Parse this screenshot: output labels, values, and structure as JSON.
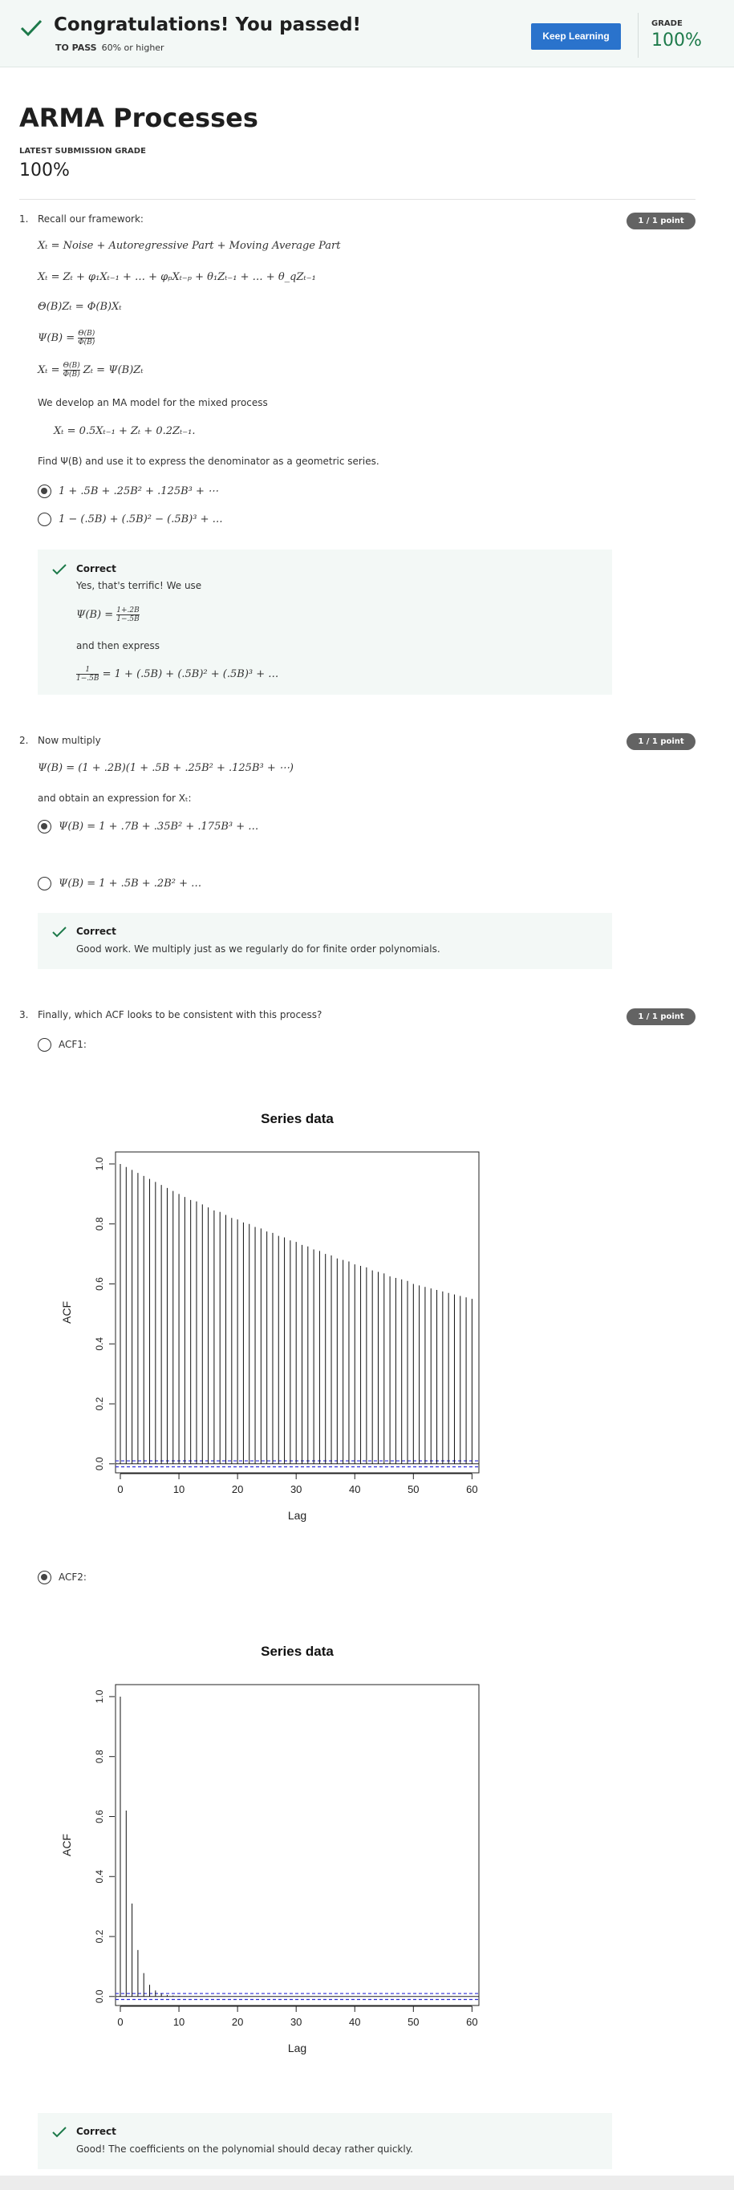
{
  "banner": {
    "title": "Congratulations! You passed!",
    "to_pass_label": "TO PASS",
    "to_pass_value": "60% or higher",
    "keep_learning_label": "Keep Learning",
    "grade_label": "GRADE",
    "grade_value": "100%",
    "accent_color": "#2a73cc",
    "success_color": "#1d7a4a",
    "icon": "check-icon"
  },
  "page": {
    "title": "ARMA Processes",
    "latest_label": "LATEST SUBMISSION GRADE",
    "latest_value": "100%"
  },
  "q1": {
    "number": "1.",
    "text": "Recall our framework:",
    "points": "1 / 1 point",
    "eq1": "Xₜ = Noise + Autoregressive Part + Moving Average Part",
    "eq2": "Xₜ = Zₜ + φ₁Xₜ₋₁ + … + φₚXₜ₋ₚ + θ₁Zₜ₋₁ + … + θ_qZₜ₋₁",
    "eq3": "Θ(B)Zₜ = Φ(B)Xₜ",
    "eq4_lhs": "Ψ(B) =",
    "eq4_num": "Θ(B)",
    "eq4_den": "Φ(B)",
    "eq5_lhs": "Xₜ =",
    "eq5_num": "Θ(B)",
    "eq5_den": "Φ(B)",
    "eq5_rhs": "Zₜ = Ψ(B)Zₜ",
    "dev_text": "We develop an MA model for the mixed process",
    "model": "Xₜ = 0.5Xₜ₋₁ + Zₜ + 0.2Zₜ₋₁.",
    "find_text": "Find Ψ(B) and use it to express the denominator as a geometric series.",
    "options": [
      {
        "text": "1 + .5B + .25B² + .125B³ + ⋯",
        "selected": true
      },
      {
        "text": "1 − (.5B) + (.5B)² − (.5B)³ + …",
        "selected": false
      }
    ],
    "feedback": {
      "title": "Correct",
      "line1": "Yes, that's terrific! We use",
      "psi_lhs": "Ψ(B) =",
      "psi_num": "1+.2B",
      "psi_den": "1−.5B",
      "line2": "and then express",
      "geo_num": "1",
      "geo_den": "1−.5B",
      "geo_rhs": "= 1 + (.5B) + (.5B)² + (.5B)³ + …"
    }
  },
  "q2": {
    "number": "2.",
    "text": "Now multiply",
    "points": "1 / 1 point",
    "eq": "Ψ(B) = (1 + .2B)(1 + .5B + .25B² + .125B³ + ⋯)",
    "obtain": "and obtain an expression for Xₜ:",
    "options": [
      {
        "text": "Ψ(B) = 1 + .7B + .35B² + .175B³ + …",
        "selected": true
      },
      {
        "text": "Ψ(B) = 1 + .5B + .2B² + …",
        "selected": false
      }
    ],
    "feedback": {
      "title": "Correct",
      "line1": "Good work. We multiply just as we regularly do for finite order polynomials."
    }
  },
  "q3": {
    "number": "3.",
    "text": "Finally, which ACF looks to be consistent with this process?",
    "points": "1 / 1 point",
    "options": [
      {
        "text": "ACF1:",
        "selected": false
      },
      {
        "text": "ACF2:",
        "selected": true
      }
    ],
    "feedback": {
      "title": "Correct",
      "line1": "Good! The coefficients on the polynomial should decay rather quickly."
    }
  },
  "chart_data": [
    {
      "type": "bar",
      "title": "Series  data",
      "xlabel": "Lag",
      "ylabel": "ACF",
      "xlim": [
        0,
        62
      ],
      "ylim": [
        -0.03,
        1.04
      ],
      "xticks": [
        "0",
        "10",
        "20",
        "30",
        "40",
        "50",
        "60"
      ],
      "yticks": [
        "0.0",
        "0.2",
        "0.4",
        "0.6",
        "0.8",
        "1.0"
      ],
      "confidence_band": 0.01,
      "lags": [
        0,
        1,
        2,
        3,
        4,
        5,
        6,
        7,
        8,
        9,
        10,
        11,
        12,
        13,
        14,
        15,
        16,
        17,
        18,
        19,
        20,
        21,
        22,
        23,
        24,
        25,
        26,
        27,
        28,
        29,
        30,
        31,
        32,
        33,
        34,
        35,
        36,
        37,
        38,
        39,
        40,
        41,
        42,
        43,
        44,
        45,
        46,
        47,
        48,
        49,
        50,
        51,
        52,
        53,
        54,
        55,
        56,
        57,
        58,
        59,
        60
      ],
      "values": [
        1.0,
        0.99,
        0.98,
        0.97,
        0.96,
        0.95,
        0.94,
        0.93,
        0.92,
        0.91,
        0.9,
        0.89,
        0.88,
        0.875,
        0.865,
        0.855,
        0.845,
        0.84,
        0.83,
        0.82,
        0.815,
        0.805,
        0.8,
        0.79,
        0.785,
        0.775,
        0.77,
        0.76,
        0.755,
        0.745,
        0.74,
        0.73,
        0.725,
        0.715,
        0.71,
        0.7,
        0.695,
        0.685,
        0.68,
        0.675,
        0.665,
        0.66,
        0.655,
        0.645,
        0.64,
        0.635,
        0.625,
        0.62,
        0.615,
        0.61,
        0.6,
        0.595,
        0.59,
        0.585,
        0.58,
        0.575,
        0.57,
        0.565,
        0.56,
        0.555,
        0.55
      ],
      "grid": false
    },
    {
      "type": "bar",
      "title": "Series  data",
      "xlabel": "Lag",
      "ylabel": "ACF",
      "xlim": [
        0,
        62
      ],
      "ylim": [
        -0.03,
        1.04
      ],
      "xticks": [
        "0",
        "10",
        "20",
        "30",
        "40",
        "50",
        "60"
      ],
      "yticks": [
        "0.0",
        "0.2",
        "0.4",
        "0.6",
        "0.8",
        "1.0"
      ],
      "confidence_band": 0.01,
      "lags": [
        0,
        1,
        2,
        3,
        4,
        5,
        6,
        7,
        8,
        9,
        10,
        11,
        12,
        13,
        14,
        15,
        16,
        17,
        18,
        19,
        20
      ],
      "values": [
        1.0,
        0.62,
        0.31,
        0.155,
        0.078,
        0.039,
        0.02,
        0.01,
        0.005,
        0.003,
        0.002,
        0.001,
        0.001,
        0.0,
        0.0,
        0.0,
        0.0,
        0.0,
        0.0,
        0.0,
        0.0
      ],
      "grid": false
    }
  ]
}
